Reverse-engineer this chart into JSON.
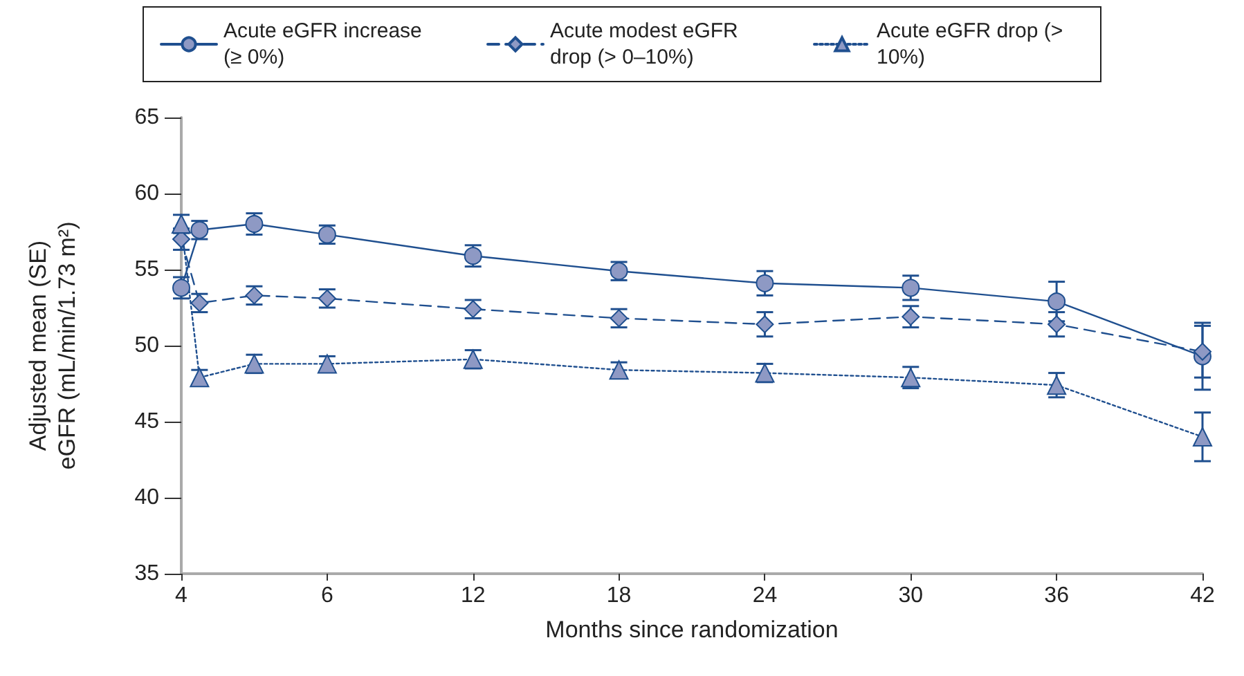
{
  "chart_data": {
    "type": "line",
    "xlabel": "Months since randomization",
    "ylabel": "Adjusted mean (SE)\neGFR (mL/min/1.73 m²)",
    "categories": [
      "4",
      null,
      null,
      null,
      null,
      null,
      null,
      null,
      "6",
      null,
      null,
      null,
      null,
      null,
      null,
      null,
      "12",
      null,
      null,
      null,
      null,
      null,
      null,
      null,
      "18",
      null,
      null,
      null,
      null,
      null,
      null,
      null,
      "24",
      null,
      null,
      null,
      null,
      null,
      null,
      null,
      "30",
      null,
      null,
      null,
      null,
      null,
      null,
      null,
      "36",
      null,
      null,
      null,
      null,
      null,
      null,
      null,
      "42"
    ],
    "ylim": [
      35,
      65
    ],
    "yticks": [
      35,
      40,
      45,
      50,
      55,
      60,
      65
    ],
    "grid": false,
    "legend": "top",
    "series": [
      {
        "name": "Acute eGFR increase (≥ 0%)",
        "color": "#8e99c4",
        "marker": "circle",
        "line_style": "solid",
        "values": [
          53.8,
          57.6,
          null,
          null,
          58.0,
          null,
          null,
          null,
          57.3,
          null,
          null,
          null,
          null,
          null,
          null,
          null,
          55.9,
          null,
          null,
          null,
          null,
          null,
          null,
          null,
          54.9,
          null,
          null,
          null,
          null,
          null,
          null,
          null,
          54.1,
          null,
          null,
          null,
          null,
          null,
          null,
          null,
          53.8,
          null,
          null,
          null,
          null,
          null,
          null,
          null,
          52.9,
          null,
          null,
          null,
          null,
          null,
          null,
          null,
          49.3
        ],
        "errors": [
          0.7,
          0.6,
          null,
          null,
          0.7,
          null,
          null,
          null,
          0.6,
          null,
          null,
          null,
          null,
          null,
          null,
          null,
          0.7,
          null,
          null,
          null,
          null,
          null,
          null,
          null,
          0.6,
          null,
          null,
          null,
          null,
          null,
          null,
          null,
          0.8,
          null,
          null,
          null,
          null,
          null,
          null,
          null,
          0.8,
          null,
          null,
          null,
          null,
          null,
          null,
          null,
          1.3,
          null,
          null,
          null,
          null,
          null,
          null,
          null,
          2.2
        ]
      },
      {
        "name": "Acute modest eGFR drop (> 0–10%)",
        "color": "#8e99c4",
        "marker": "diamond",
        "line_style": "dashed",
        "values": [
          57.0,
          52.8,
          null,
          null,
          53.3,
          null,
          null,
          null,
          53.1,
          null,
          null,
          null,
          null,
          null,
          null,
          null,
          52.4,
          null,
          null,
          null,
          null,
          null,
          null,
          null,
          51.8,
          null,
          null,
          null,
          null,
          null,
          null,
          null,
          51.4,
          null,
          null,
          null,
          null,
          null,
          null,
          null,
          51.9,
          null,
          null,
          null,
          null,
          null,
          null,
          null,
          51.4,
          null,
          null,
          null,
          null,
          null,
          null,
          null,
          49.6
        ],
        "errors": [
          0.7,
          0.6,
          null,
          null,
          0.6,
          null,
          null,
          null,
          0.6,
          null,
          null,
          null,
          null,
          null,
          null,
          null,
          0.6,
          null,
          null,
          null,
          null,
          null,
          null,
          null,
          0.6,
          null,
          null,
          null,
          null,
          null,
          null,
          null,
          0.8,
          null,
          null,
          null,
          null,
          null,
          null,
          null,
          0.7,
          null,
          null,
          null,
          null,
          null,
          null,
          null,
          0.8,
          null,
          null,
          null,
          null,
          null,
          null,
          null,
          1.7
        ]
      },
      {
        "name": "Acute eGFR drop (> 10%)",
        "color": "#8e99c4",
        "marker": "triangle",
        "line_style": "dotted",
        "values": [
          58.0,
          47.9,
          null,
          null,
          48.8,
          null,
          null,
          null,
          48.8,
          null,
          null,
          null,
          null,
          null,
          null,
          null,
          49.1,
          null,
          null,
          null,
          null,
          null,
          null,
          null,
          48.4,
          null,
          null,
          null,
          null,
          null,
          null,
          null,
          48.2,
          null,
          null,
          null,
          null,
          null,
          null,
          null,
          47.9,
          null,
          null,
          null,
          null,
          null,
          null,
          null,
          47.4,
          null,
          null,
          null,
          null,
          null,
          null,
          null,
          44.0
        ],
        "errors": [
          0.6,
          0.5,
          null,
          null,
          0.6,
          null,
          null,
          null,
          0.5,
          null,
          null,
          null,
          null,
          null,
          null,
          null,
          0.6,
          null,
          null,
          null,
          null,
          null,
          null,
          null,
          0.5,
          null,
          null,
          null,
          null,
          null,
          null,
          null,
          0.6,
          null,
          null,
          null,
          null,
          null,
          null,
          null,
          0.7,
          null,
          null,
          null,
          null,
          null,
          null,
          null,
          0.8,
          null,
          null,
          null,
          null,
          null,
          null,
          null,
          1.6
        ]
      }
    ]
  }
}
